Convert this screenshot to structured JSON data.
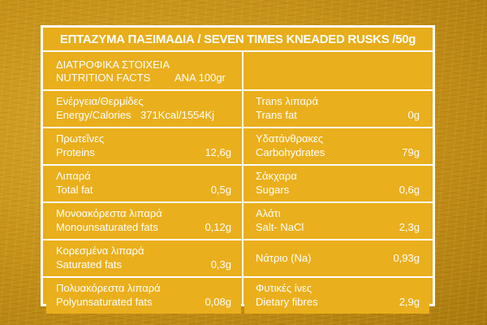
{
  "title": "ΕΠΤΑΖΥΜΑ ΠΑΞΙΜΑΔΙΑ / SEVEN TIMES KNEADED RUSKS /50g",
  "header": {
    "greek": "ΔΙΑΤΡΟΦΙΚΑ ΣΤΟΙΧΕΙΑ",
    "english": "NUTRITION FACTS",
    "per": "ΑΝΑ 100gr"
  },
  "rows": [
    {
      "left": {
        "greek": "Ενέργεια/Θερμίδες",
        "english": "Energy/Calories",
        "value": "371Kcal/1554Kj"
      },
      "right": {
        "greek": "Trans λιπαρά",
        "english": "Trans fat",
        "value": "0g"
      }
    },
    {
      "left": {
        "greek": "Πρωτεΐνες",
        "english": "Proteins",
        "value": "12,6g"
      },
      "right": {
        "greek": "Υδατάνθρακες",
        "english": "Carbohydrates",
        "value": "79g"
      }
    },
    {
      "left": {
        "greek": "Λιπαρά",
        "english": "Total fat",
        "value": "0,5g"
      },
      "right": {
        "greek": "Σάκχαρα",
        "english": "Sugars",
        "value": "0,6g"
      }
    },
    {
      "left": {
        "greek": "Μονοακόρεστα λιπαρά",
        "english": "Monounsaturated fats",
        "value": "0,12g"
      },
      "right": {
        "greek": "Αλάτι",
        "english": "Salt- NaCl",
        "value": "2,3g"
      }
    },
    {
      "left": {
        "greek": "Κορεσμένα λιπαρά",
        "english": "Saturated fats",
        "value": "0,3g"
      },
      "right": {
        "single": "Νάτριο (Na)",
        "value": "0,93g"
      }
    },
    {
      "left": {
        "greek": "Πολυακόρεστα λιπαρά",
        "english": "Polyunsaturated fats",
        "value": "0,08g"
      },
      "right": {
        "greek": "Φυτικές ίνες",
        "english": "Dietary fibres",
        "value": "2,9g"
      }
    }
  ],
  "colors": {
    "background": "#c99619",
    "panel": "#e8ad1a",
    "text": "#ffffff"
  }
}
